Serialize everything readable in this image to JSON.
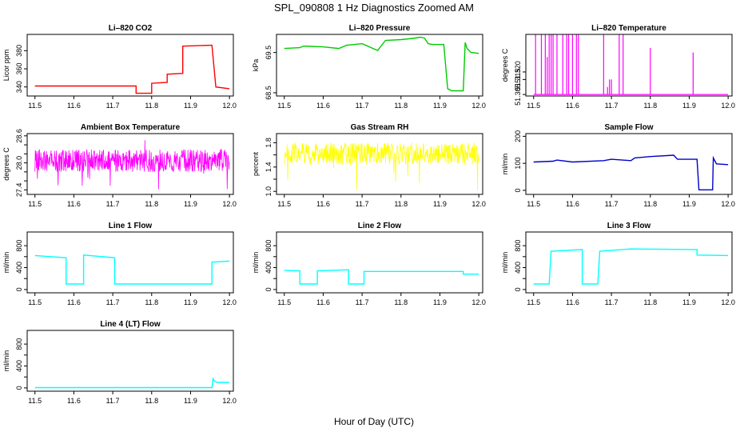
{
  "figure": {
    "title": "SPL_090808  1 Hz Diagnostics Zoomed AM",
    "xlabel": "Hour of Day (UTC)"
  },
  "chart_data": [
    {
      "type": "line",
      "title": "Li–820 CO2",
      "ylabel": "Licor ppm",
      "color": "#ff0000",
      "xlim": [
        11.48,
        12.01
      ],
      "ylim": [
        330,
        398
      ],
      "yticks": [
        340,
        360,
        380
      ],
      "xticks": [
        11.5,
        11.6,
        11.7,
        11.8,
        11.9,
        12.0
      ],
      "x": [
        11.5,
        11.6,
        11.69,
        11.73,
        11.76,
        11.76,
        11.8,
        11.8,
        11.84,
        11.84,
        11.88,
        11.88,
        11.95,
        11.955,
        11.965,
        12.0
      ],
      "y": [
        341,
        341,
        341,
        341,
        341,
        333,
        333,
        344,
        345,
        354,
        355,
        385,
        386,
        386,
        340,
        338
      ]
    },
    {
      "type": "line",
      "title": "Li–820 Pressure",
      "ylabel": "kPa",
      "color": "#00cc00",
      "xlim": [
        11.48,
        12.01
      ],
      "ylim": [
        68.42,
        69.95
      ],
      "yticks": [
        68.5,
        69.5
      ],
      "xticks": [
        11.5,
        11.6,
        11.7,
        11.8,
        11.9,
        12.0
      ],
      "x": [
        11.5,
        11.54,
        11.55,
        11.6,
        11.64,
        11.66,
        11.7,
        11.74,
        11.76,
        11.8,
        11.83,
        11.85,
        11.86,
        11.87,
        11.88,
        11.9,
        11.91,
        11.92,
        11.93,
        11.94,
        11.96,
        11.965,
        11.97,
        11.98,
        12.0
      ],
      "y": [
        69.6,
        69.62,
        69.66,
        69.64,
        69.6,
        69.68,
        69.72,
        69.55,
        69.8,
        69.82,
        69.85,
        69.88,
        69.86,
        69.72,
        69.7,
        69.7,
        69.7,
        68.6,
        68.55,
        68.55,
        68.55,
        69.75,
        69.6,
        69.5,
        69.48
      ]
    },
    {
      "type": "line",
      "title": "Li–820 Temperature",
      "ylabel": "degrees C",
      "color": "#ff00ff",
      "xlim": [
        11.48,
        12.01
      ],
      "ylim": [
        51.304,
        51.345
      ],
      "yticks": [
        51.305,
        51.315,
        51.32
      ],
      "ytick_labels": [
        "51.305",
        "51.315",
        "51.320"
      ],
      "xticks": [
        11.5,
        11.6,
        11.7,
        11.8,
        11.9,
        12.0
      ],
      "baseline": 51.305,
      "spikes_x": [
        11.505,
        11.52,
        11.53,
        11.535,
        11.54,
        11.545,
        11.55,
        11.56,
        11.575,
        11.585,
        11.59,
        11.6,
        11.61,
        11.615,
        11.68,
        11.69,
        11.695,
        11.7,
        11.72,
        11.73,
        11.8,
        11.91
      ],
      "spikes_top": [
        51.345,
        51.345,
        51.345,
        51.33,
        51.345,
        51.345,
        51.345,
        51.345,
        51.345,
        51.345,
        51.345,
        51.345,
        51.345,
        51.345,
        51.345,
        51.31,
        51.315,
        51.315,
        51.345,
        51.345,
        51.336,
        51.333
      ]
    },
    {
      "type": "line",
      "title": "Ambient Box Temperature",
      "ylabel": "degrees C",
      "color": "#ff00ff",
      "xlim": [
        11.48,
        12.01
      ],
      "ylim": [
        27.3,
        28.65
      ],
      "yticks": [
        27.4,
        27.6,
        27.8,
        28.0,
        28.2,
        28.4,
        28.6
      ],
      "ytick_labels": [
        "27.4",
        "",
        "",
        "28.0",
        "",
        "",
        "28.6"
      ],
      "xticks": [
        11.5,
        11.6,
        11.7,
        11.8,
        11.9,
        12.0
      ],
      "noise": {
        "center": 28.05,
        "spread": 0.25,
        "min": 27.35,
        "max": 28.62
      }
    },
    {
      "type": "line",
      "title": "Gas Stream RH",
      "ylabel": "percent",
      "color": "#ffff00",
      "xlim": [
        11.48,
        12.01
      ],
      "ylim": [
        0.95,
        1.95
      ],
      "yticks": [
        1.0,
        1.2,
        1.4,
        1.6,
        1.8
      ],
      "ytick_labels": [
        "1.0",
        "",
        "1.4",
        "",
        "1.8"
      ],
      "xticks": [
        11.5,
        11.6,
        11.7,
        11.8,
        11.9,
        12.0
      ],
      "noise": {
        "center": 1.62,
        "spread": 0.18,
        "min": 1.0,
        "max": 1.93
      }
    },
    {
      "type": "line",
      "title": "Sample Flow",
      "ylabel": "ml/min",
      "color": "#0000cc",
      "xlim": [
        11.48,
        12.01
      ],
      "ylim": [
        -15,
        210
      ],
      "yticks": [
        0,
        100,
        200
      ],
      "xticks": [
        11.5,
        11.6,
        11.7,
        11.8,
        11.9,
        12.0
      ],
      "x": [
        11.5,
        11.55,
        11.56,
        11.6,
        11.68,
        11.7,
        11.75,
        11.76,
        11.8,
        11.86,
        11.87,
        11.92,
        11.925,
        11.96,
        11.962,
        11.97,
        12.0
      ],
      "y": [
        105,
        108,
        112,
        105,
        110,
        115,
        110,
        120,
        125,
        130,
        115,
        115,
        2,
        2,
        120,
        98,
        95
      ]
    },
    {
      "type": "line",
      "title": "Line 1 Flow",
      "ylabel": "ml/min",
      "color": "#00ffff",
      "xlim": [
        11.48,
        12.01
      ],
      "ylim": [
        -60,
        1050
      ],
      "yticks": [
        0,
        200,
        400,
        600,
        800
      ],
      "ytick_labels": [
        "0",
        "",
        "400",
        "",
        "800"
      ],
      "xticks": [
        11.5,
        11.6,
        11.7,
        11.8,
        11.9,
        12.0
      ],
      "x": [
        11.5,
        11.54,
        11.58,
        11.58,
        11.625,
        11.625,
        11.705,
        11.705,
        11.955,
        11.955,
        12.0
      ],
      "y": [
        620,
        600,
        580,
        100,
        100,
        630,
        580,
        100,
        100,
        500,
        520
      ]
    },
    {
      "type": "line",
      "title": "Line 2 Flow",
      "ylabel": "ml/min",
      "color": "#00ffff",
      "xlim": [
        11.48,
        12.01
      ],
      "ylim": [
        -60,
        1050
      ],
      "yticks": [
        0,
        200,
        400,
        600,
        800
      ],
      "ytick_labels": [
        "0",
        "",
        "400",
        "",
        "800"
      ],
      "xticks": [
        11.5,
        11.6,
        11.7,
        11.8,
        11.9,
        12.0
      ],
      "x": [
        11.5,
        11.54,
        11.54,
        11.585,
        11.585,
        11.665,
        11.665,
        11.705,
        11.705,
        11.96,
        11.96,
        12.0
      ],
      "y": [
        350,
        340,
        100,
        100,
        340,
        360,
        100,
        100,
        330,
        330,
        280,
        280
      ]
    },
    {
      "type": "line",
      "title": "Line 3 Flow",
      "ylabel": "ml/min",
      "color": "#00ffff",
      "xlim": [
        11.48,
        12.01
      ],
      "ylim": [
        -60,
        1050
      ],
      "yticks": [
        0,
        200,
        400,
        600,
        800
      ],
      "ytick_labels": [
        "0",
        "",
        "400",
        "",
        "800"
      ],
      "xticks": [
        11.5,
        11.6,
        11.7,
        11.8,
        11.9,
        12.0
      ],
      "x": [
        11.5,
        11.54,
        11.545,
        11.625,
        11.625,
        11.665,
        11.67,
        11.75,
        11.92,
        11.92,
        12.0
      ],
      "y": [
        100,
        100,
        700,
        730,
        100,
        100,
        700,
        740,
        730,
        630,
        620
      ]
    },
    {
      "type": "line",
      "title": "Line 4 (LT) Flow",
      "ylabel": "ml/min",
      "color": "#00ffff",
      "xlim": [
        11.48,
        12.01
      ],
      "ylim": [
        -60,
        1050
      ],
      "yticks": [
        0,
        200,
        400,
        600,
        800
      ],
      "ytick_labels": [
        "0",
        "",
        "400",
        "",
        "800"
      ],
      "xticks": [
        11.5,
        11.6,
        11.7,
        11.8,
        11.9,
        12.0
      ],
      "x": [
        11.5,
        11.955,
        11.958,
        11.962,
        11.97,
        12.0
      ],
      "y": [
        5,
        5,
        170,
        120,
        100,
        100
      ]
    }
  ]
}
